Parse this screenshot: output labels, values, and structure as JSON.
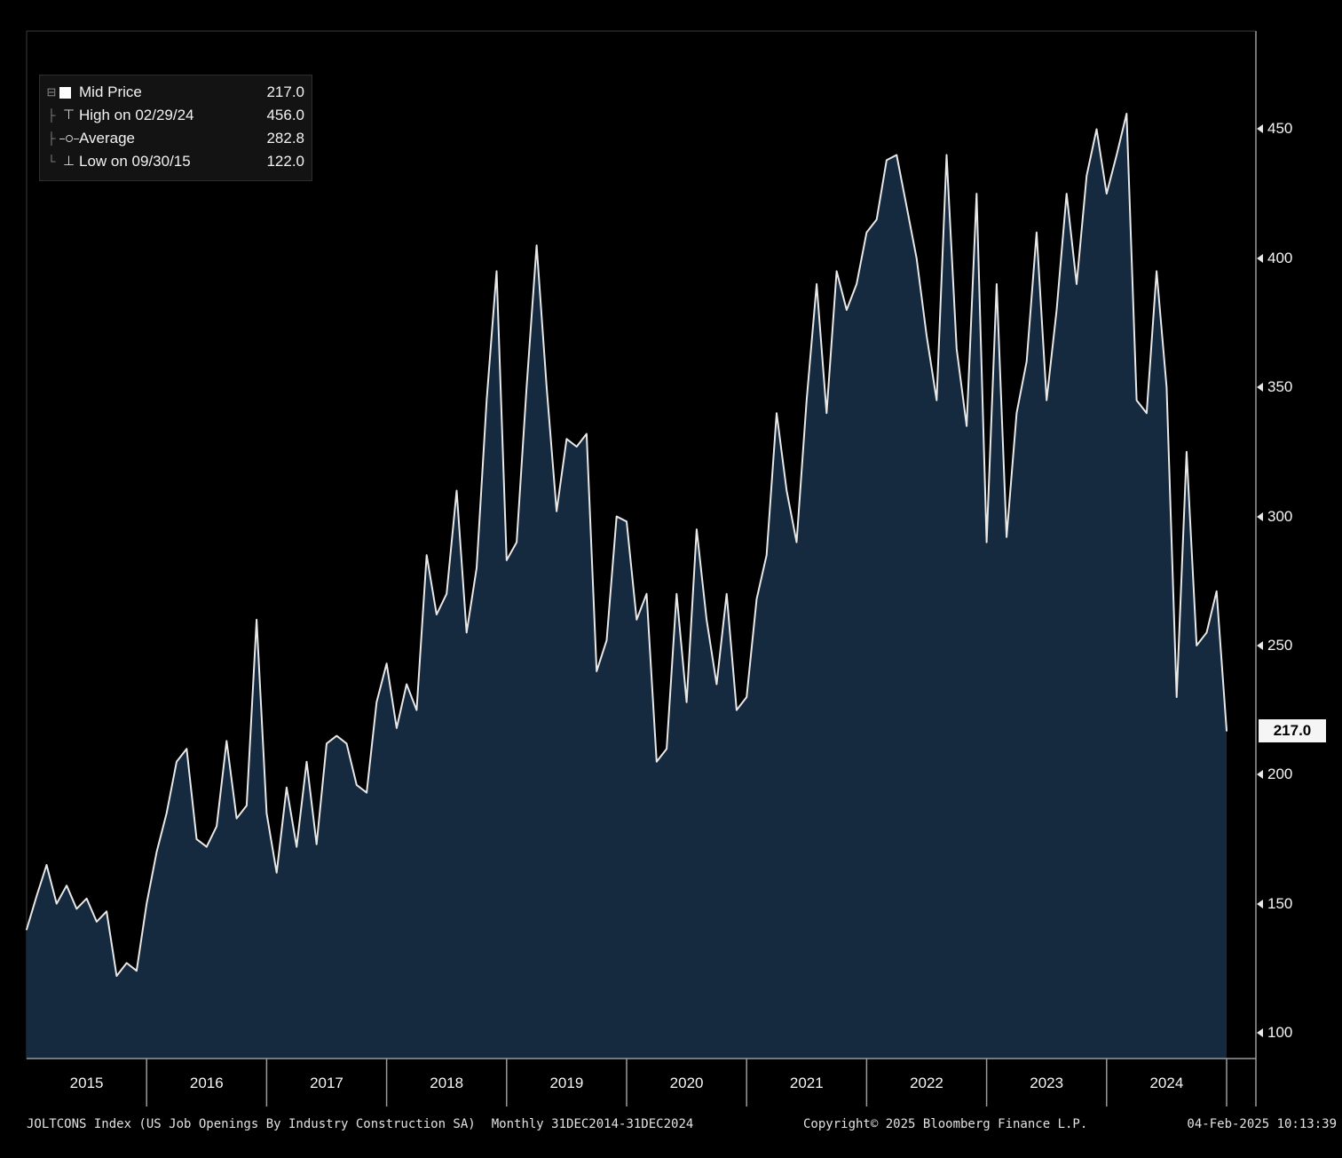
{
  "legend": {
    "rows": [
      {
        "marker": "mid",
        "label": "Mid Price",
        "value": "217.0"
      },
      {
        "marker": "high",
        "label": "High on 02/29/24",
        "value": "456.0"
      },
      {
        "marker": "average",
        "label": "Average",
        "value": "282.8"
      },
      {
        "marker": "low",
        "label": "Low on 09/30/15",
        "value": "122.0"
      }
    ]
  },
  "y_axis": {
    "ticks": [
      450,
      400,
      350,
      300,
      250,
      200,
      150,
      100
    ],
    "last_price_label": "217.0",
    "last_price_value": 217
  },
  "x_axis": {
    "years": [
      "2015",
      "2016",
      "2017",
      "2018",
      "2019",
      "2020",
      "2021",
      "2022",
      "2023",
      "2024"
    ]
  },
  "status_bar": {
    "security": "JOLTCONS Index (US Job Openings By Industry Construction SA)",
    "periodicity": "Monthly 31DEC2014-31DEC2024",
    "copyright": "Copyright© 2025 Bloomberg Finance L.P.",
    "datetime": "04-Feb-2025 10:13:39"
  },
  "chart_data": {
    "type": "area",
    "title": "JOLTCONS Index (US Job Openings By Industry Construction SA)",
    "frequency": "monthly",
    "x_start": "2014-12",
    "x_end": "2024-12",
    "values": [
      140,
      153,
      165,
      150,
      157,
      148,
      152,
      143,
      147,
      122,
      127,
      124,
      150,
      170,
      185,
      205,
      210,
      175,
      172,
      180,
      213,
      183,
      188,
      260,
      185,
      162,
      195,
      172,
      205,
      173,
      212,
      215,
      212,
      196,
      193,
      228,
      243,
      218,
      235,
      225,
      285,
      262,
      270,
      310,
      255,
      280,
      345,
      395,
      283,
      290,
      350,
      405,
      350,
      302,
      330,
      327,
      332,
      240,
      252,
      300,
      298,
      260,
      270,
      205,
      210,
      270,
      228,
      295,
      260,
      235,
      270,
      225,
      230,
      268,
      285,
      340,
      310,
      290,
      345,
      390,
      340,
      395,
      380,
      390,
      410,
      415,
      438,
      440,
      420,
      400,
      370,
      345,
      440,
      365,
      335,
      425,
      290,
      390,
      292,
      340,
      360,
      410,
      345,
      380,
      425,
      390,
      432,
      450,
      425,
      440,
      456,
      345,
      340,
      395,
      350,
      230,
      325,
      250,
      255,
      271,
      217
    ],
    "mid_price": 217.0,
    "high": {
      "date": "02/29/24",
      "value": 456.0
    },
    "average": 282.8,
    "low": {
      "date": "09/30/15",
      "value": 122.0
    },
    "ylim": [
      90,
      488
    ],
    "yticks": [
      100,
      150,
      200,
      250,
      300,
      350,
      400,
      450
    ],
    "grid": false,
    "legend_position": "top-left",
    "colors": {
      "background": "#000000",
      "area_fill": "#15293f",
      "line": "#e8e8e8",
      "axis": "#9a9a9a",
      "last_price_bg": "#f5f5f5"
    }
  }
}
